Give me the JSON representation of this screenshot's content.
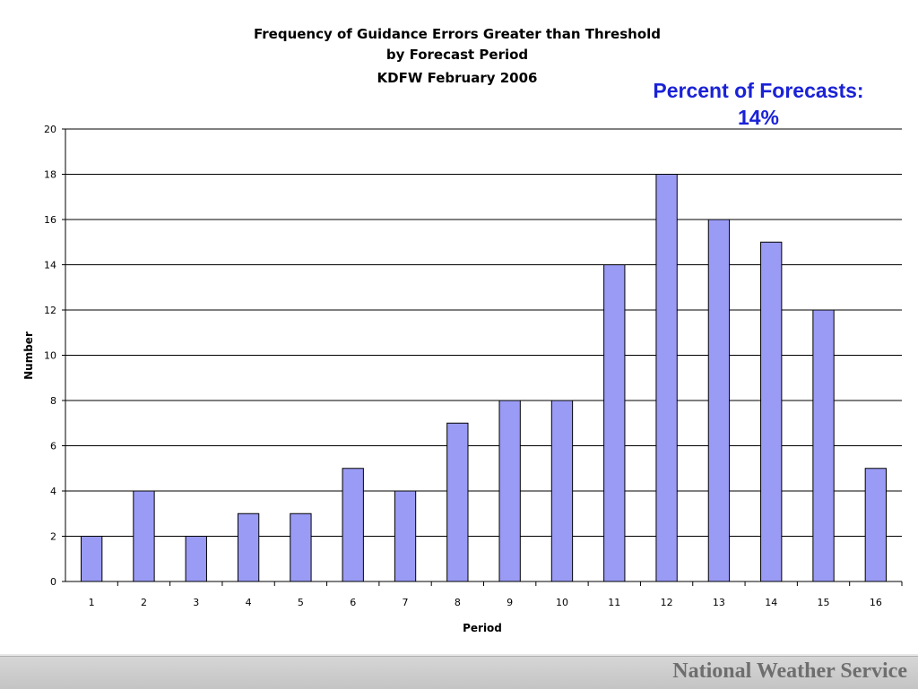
{
  "callout": {
    "line1": "Percent of Forecasts:",
    "line2": "14%"
  },
  "footer": {
    "label": "National Weather Service"
  },
  "colors": {
    "bar_fill": "#9a9bf5",
    "bar_stroke": "#000000",
    "gridline": "#000000",
    "callout": "#1a22d6"
  },
  "chart_data": {
    "type": "bar",
    "title": [
      "Frequency of Guidance Errors Greater than Threshold",
      "by Forecast Period",
      "KDFW February 2006"
    ],
    "xlabel": "Period",
    "ylabel": "Number",
    "categories": [
      "1",
      "2",
      "3",
      "4",
      "5",
      "6",
      "7",
      "8",
      "9",
      "10",
      "11",
      "12",
      "13",
      "14",
      "15",
      "16"
    ],
    "values": [
      2,
      4,
      2,
      3,
      3,
      5,
      4,
      7,
      8,
      8,
      14,
      18,
      16,
      15,
      12,
      5
    ],
    "ylim": [
      0,
      20
    ],
    "yticks": [
      0,
      2,
      4,
      6,
      8,
      10,
      12,
      14,
      16,
      18,
      20
    ],
    "grid": true,
    "legend": "none"
  }
}
